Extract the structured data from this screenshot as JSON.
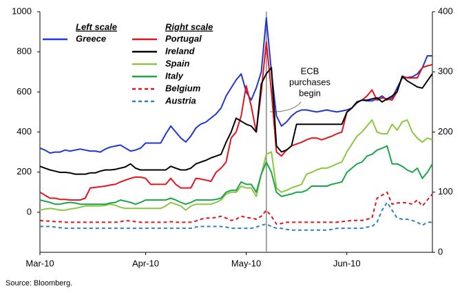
{
  "chart_data": {
    "type": "line",
    "categories": [
      "Mar-10",
      null,
      null,
      null,
      null,
      null,
      null,
      null,
      null,
      null,
      null,
      null,
      null,
      null,
      null,
      null,
      null,
      null,
      null,
      null,
      null,
      "Apr-10",
      null,
      null,
      null,
      null,
      null,
      null,
      null,
      null,
      null,
      null,
      null,
      null,
      null,
      null,
      null,
      null,
      null,
      null,
      null,
      "May-10",
      null,
      null,
      null,
      null,
      null,
      null,
      null,
      null,
      null,
      null,
      null,
      null,
      null,
      null,
      null,
      null,
      null,
      null,
      null,
      "Jun-10",
      null,
      null,
      null,
      null,
      null,
      null,
      null,
      null,
      null,
      null,
      null,
      null,
      null,
      null,
      null,
      null,
      null
    ],
    "legend_titles": [
      "Left scale",
      "Right scale"
    ],
    "annotation": [
      "ECB",
      "purchases",
      "begin"
    ],
    "source": "Source: Bloomberg.",
    "ylim": [
      -200,
      1000
    ],
    "yticks": [
      0,
      200,
      400,
      600,
      800,
      1000
    ],
    "y2lim": [
      0,
      400
    ],
    "y2ticks": [
      0,
      100,
      200,
      300,
      400
    ],
    "series": [
      {
        "name": "Greece",
        "color": "#1f35d6",
        "axis": "y",
        "dash": false,
        "values": [
          320,
          310,
          295,
          300,
          300,
          310,
          305,
          310,
          315,
          310,
          305,
          305,
          300,
          315,
          325,
          330,
          335,
          320,
          305,
          310,
          320,
          345,
          345,
          345,
          345,
          390,
          430,
          400,
          370,
          350,
          380,
          420,
          440,
          450,
          470,
          490,
          520,
          580,
          620,
          660,
          690,
          600,
          560,
          620,
          700,
          970,
          700,
          480,
          430,
          450,
          480,
          500,
          510,
          510,
          505,
          500,
          505,
          510,
          505,
          500,
          505,
          510,
          520,
          545,
          560,
          555,
          555,
          565,
          580,
          560,
          570,
          620,
          670,
          672,
          675,
          690,
          720,
          780,
          780
        ]
      },
      {
        "name": "Portugal",
        "color": "#e3121b",
        "axis": "y2",
        "dash": false,
        "values": [
          100,
          95,
          90,
          90,
          88,
          88,
          87,
          87,
          87,
          90,
          107,
          108,
          109,
          110,
          112,
          113,
          117,
          120,
          123,
          125,
          125,
          123,
          113,
          113,
          113,
          113,
          123,
          113,
          107,
          107,
          107,
          123,
          122,
          120,
          118,
          133,
          140,
          150,
          190,
          200,
          227,
          277,
          243,
          200,
          267,
          350,
          267,
          167,
          160,
          170,
          177,
          180,
          183,
          187,
          190,
          190,
          187,
          190,
          193,
          197,
          200,
          233,
          240,
          250,
          253,
          260,
          270,
          253,
          257,
          255,
          253,
          267,
          293,
          290,
          290,
          290,
          307,
          310,
          312
        ]
      },
      {
        "name": "Ireland",
        "color": "#000000",
        "axis": "y2",
        "dash": false,
        "values": [
          143,
          140,
          137,
          135,
          133,
          133,
          132,
          130,
          130,
          130,
          132,
          132,
          135,
          137,
          137,
          138,
          140,
          142,
          147,
          140,
          137,
          137,
          137,
          137,
          137,
          137,
          143,
          140,
          137,
          137,
          140,
          147,
          150,
          153,
          157,
          160,
          163,
          183,
          200,
          223,
          218,
          213,
          210,
          200,
          280,
          297,
          307,
          177,
          167,
          170,
          177,
          213,
          213,
          213,
          213,
          213,
          213,
          213,
          213,
          213,
          213,
          233,
          240,
          250,
          253,
          253,
          255,
          257,
          250,
          255,
          260,
          267,
          293,
          285,
          280,
          275,
          273,
          285,
          297
        ]
      },
      {
        "name": "Spain",
        "color": "#8cc63e",
        "axis": "y2",
        "dash": false,
        "values": [
          70,
          72,
          73,
          72,
          70,
          70,
          72,
          73,
          75,
          77,
          77,
          77,
          77,
          78,
          80,
          78,
          75,
          73,
          73,
          73,
          73,
          73,
          73,
          73,
          73,
          77,
          83,
          80,
          77,
          70,
          77,
          80,
          80,
          80,
          80,
          83,
          87,
          97,
          100,
          100,
          110,
          107,
          107,
          93,
          130,
          163,
          167,
          107,
          100,
          103,
          107,
          110,
          113,
          130,
          133,
          137,
          140,
          140,
          143,
          147,
          150,
          167,
          180,
          193,
          200,
          210,
          220,
          200,
          197,
          197,
          213,
          203,
          217,
          220,
          200,
          190,
          183,
          190,
          187
        ]
      },
      {
        "name": "Italy",
        "color": "#17a548",
        "axis": "y2",
        "dash": false,
        "values": [
          87,
          85,
          83,
          80,
          80,
          82,
          83,
          82,
          80,
          80,
          80,
          80,
          80,
          80,
          82,
          83,
          87,
          85,
          83,
          80,
          83,
          87,
          87,
          87,
          87,
          87,
          90,
          87,
          83,
          80,
          83,
          87,
          87,
          87,
          87,
          88,
          90,
          100,
          103,
          103,
          117,
          113,
          113,
          100,
          130,
          150,
          133,
          100,
          93,
          95,
          97,
          100,
          100,
          103,
          110,
          110,
          110,
          110,
          113,
          115,
          117,
          133,
          140,
          147,
          150,
          160,
          163,
          170,
          173,
          177,
          147,
          147,
          143,
          137,
          133,
          140,
          123,
          133,
          147
        ]
      },
      {
        "name": "Belgium",
        "color": "#e3121b",
        "axis": "y2",
        "dash": true,
        "values": [
          53,
          52,
          52,
          51,
          51,
          50,
          50,
          50,
          50,
          50,
          50,
          50,
          50,
          50,
          50,
          50,
          51,
          53,
          52,
          51,
          50,
          50,
          50,
          50,
          50,
          50,
          51,
          50,
          50,
          50,
          50,
          52,
          55,
          57,
          57,
          58,
          60,
          57,
          53,
          55,
          60,
          58,
          57,
          55,
          60,
          70,
          60,
          47,
          48,
          50,
          50,
          50,
          50,
          50,
          50,
          50,
          50,
          50,
          50,
          50,
          51,
          52,
          53,
          53,
          53,
          55,
          57,
          90,
          95,
          100,
          80,
          82,
          83,
          82,
          80,
          87,
          77,
          87,
          97
        ]
      },
      {
        "name": "Austria",
        "color": "#2e7fc0",
        "axis": "y2",
        "dash": true,
        "values": [
          43,
          43,
          43,
          42,
          41,
          40,
          40,
          40,
          40,
          40,
          40,
          40,
          40,
          40,
          40,
          40,
          40,
          40,
          40,
          40,
          40,
          40,
          40,
          40,
          40,
          40,
          40,
          40,
          40,
          40,
          40,
          42,
          43,
          43,
          43,
          43,
          43,
          42,
          40,
          40,
          40,
          40,
          40,
          42,
          45,
          47,
          43,
          40,
          40,
          38,
          37,
          37,
          37,
          37,
          37,
          37,
          37,
          37,
          38,
          40,
          40,
          40,
          40,
          40,
          40,
          42,
          43,
          50,
          70,
          83,
          70,
          57,
          55,
          55,
          53,
          50,
          45,
          50,
          50
        ]
      }
    ]
  }
}
